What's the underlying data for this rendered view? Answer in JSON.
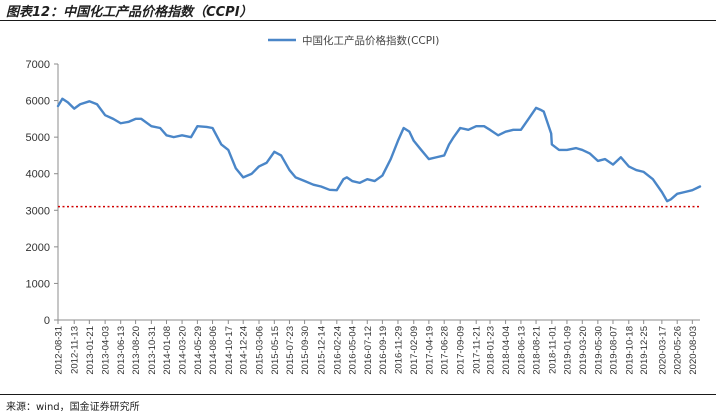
{
  "figure": {
    "title": "图表12：中国化工产品价格指数（CCPI）",
    "source": "来源：wind，国金证券研究所"
  },
  "chart_data": {
    "type": "line",
    "series": [
      {
        "name": "中国化工产品价格指数(CCPI)",
        "color": "#4a86c8",
        "points": [
          [
            "2012-08-31",
            5850
          ],
          [
            "2012-09-20",
            6050
          ],
          [
            "2012-10-15",
            5950
          ],
          [
            "2012-11-13",
            5780
          ],
          [
            "2012-12-10",
            5900
          ],
          [
            "2013-01-21",
            5980
          ],
          [
            "2013-02-25",
            5900
          ],
          [
            "2013-04-03",
            5600
          ],
          [
            "2013-05-10",
            5500
          ],
          [
            "2013-06-13",
            5380
          ],
          [
            "2013-07-20",
            5420
          ],
          [
            "2013-08-20",
            5500
          ],
          [
            "2013-09-15",
            5500
          ],
          [
            "2013-10-31",
            5300
          ],
          [
            "2013-12-10",
            5250
          ],
          [
            "2014-01-08",
            5050
          ],
          [
            "2014-02-10",
            5000
          ],
          [
            "2014-03-20",
            5050
          ],
          [
            "2014-04-30",
            5000
          ],
          [
            "2014-05-29",
            5300
          ],
          [
            "2014-07-10",
            5280
          ],
          [
            "2014-08-06",
            5250
          ],
          [
            "2014-09-15",
            4800
          ],
          [
            "2014-10-17",
            4650
          ],
          [
            "2014-11-20",
            4150
          ],
          [
            "2014-12-24",
            3900
          ],
          [
            "2015-02-01",
            4000
          ],
          [
            "2015-03-06",
            4200
          ],
          [
            "2015-04-10",
            4300
          ],
          [
            "2015-05-15",
            4600
          ],
          [
            "2015-06-15",
            4500
          ],
          [
            "2015-07-23",
            4100
          ],
          [
            "2015-08-20",
            3900
          ],
          [
            "2015-09-30",
            3800
          ],
          [
            "2015-11-09",
            3700
          ],
          [
            "2015-12-14",
            3650
          ],
          [
            "2016-01-22",
            3560
          ],
          [
            "2016-02-24",
            3550
          ],
          [
            "2016-03-25",
            3850
          ],
          [
            "2016-04-10",
            3900
          ],
          [
            "2016-05-04",
            3800
          ],
          [
            "2016-06-08",
            3750
          ],
          [
            "2016-07-12",
            3850
          ],
          [
            "2016-08-15",
            3800
          ],
          [
            "2016-09-19",
            3950
          ],
          [
            "2016-10-27",
            4400
          ],
          [
            "2016-11-29",
            4900
          ],
          [
            "2016-12-25",
            5250
          ],
          [
            "2017-01-20",
            5150
          ],
          [
            "2017-02-09",
            4900
          ],
          [
            "2017-03-15",
            4650
          ],
          [
            "2017-04-19",
            4400
          ],
          [
            "2017-05-24",
            4450
          ],
          [
            "2017-06-28",
            4500
          ],
          [
            "2017-07-20",
            4800
          ],
          [
            "2017-08-10",
            5000
          ],
          [
            "2017-09-09",
            5250
          ],
          [
            "2017-10-16",
            5200
          ],
          [
            "2017-11-21",
            5300
          ],
          [
            "2017-12-27",
            5300
          ],
          [
            "2018-01-23",
            5200
          ],
          [
            "2018-03-01",
            5050
          ],
          [
            "2018-04-04",
            5150
          ],
          [
            "2018-05-09",
            5200
          ],
          [
            "2018-06-13",
            5200
          ],
          [
            "2018-07-18",
            5500
          ],
          [
            "2018-08-21",
            5800
          ],
          [
            "2018-09-10",
            5750
          ],
          [
            "2018-09-25",
            5700
          ],
          [
            "2018-10-29",
            5100
          ],
          [
            "2018-11-01",
            4800
          ],
          [
            "2018-12-04",
            4650
          ],
          [
            "2019-01-09",
            4650
          ],
          [
            "2019-02-20",
            4700
          ],
          [
            "2019-03-20",
            4650
          ],
          [
            "2019-04-24",
            4550
          ],
          [
            "2019-05-30",
            4350
          ],
          [
            "2019-07-02",
            4400
          ],
          [
            "2019-08-07",
            4250
          ],
          [
            "2019-09-12",
            4450
          ],
          [
            "2019-10-18",
            4200
          ],
          [
            "2019-11-21",
            4100
          ],
          [
            "2019-12-25",
            4050
          ],
          [
            "2020-02-05",
            3850
          ],
          [
            "2020-03-17",
            3500
          ],
          [
            "2020-04-10",
            3250
          ],
          [
            "2020-04-27",
            3300
          ],
          [
            "2020-05-26",
            3450
          ],
          [
            "2020-06-30",
            3500
          ],
          [
            "2020-08-03",
            3550
          ],
          [
            "2020-09-07",
            3650
          ]
        ]
      }
    ],
    "reference_line": {
      "value": 3100,
      "style": "dotted",
      "color": "#d00000"
    },
    "x": {
      "type": "date",
      "tick_labels": [
        "2012-08-31",
        "2012-11-13",
        "2013-01-21",
        "2013-04-03",
        "2013-06-13",
        "2013-08-20",
        "2013-10-31",
        "2014-01-08",
        "2014-03-20",
        "2014-05-29",
        "2014-08-06",
        "2014-10-17",
        "2014-12-24",
        "2015-03-06",
        "2015-05-15",
        "2015-07-23",
        "2015-09-30",
        "2015-12-14",
        "2016-02-24",
        "2016-05-04",
        "2016-07-12",
        "2016-09-19",
        "2016-11-29",
        "2017-02-09",
        "2017-04-19",
        "2017-06-28",
        "2017-09-09",
        "2017-11-21",
        "2018-01-23",
        "2018-04-04",
        "2018-06-13",
        "2018-08-21",
        "2018-11-01",
        "2019-01-09",
        "2019-03-20",
        "2019-05-30",
        "2019-08-07",
        "2019-10-18",
        "2019-12-25",
        "2020-03-17",
        "2020-05-26",
        "2020-08-03"
      ]
    },
    "y": {
      "range": [
        0,
        7000
      ],
      "ticks": [
        0,
        1000,
        2000,
        3000,
        4000,
        5000,
        6000,
        7000
      ],
      "tick_labels": [
        "0",
        "1000",
        "2000",
        "3000",
        "4000",
        "5000",
        "6000",
        "7000"
      ]
    },
    "legend": {
      "position": "top-center"
    },
    "grid": false
  }
}
